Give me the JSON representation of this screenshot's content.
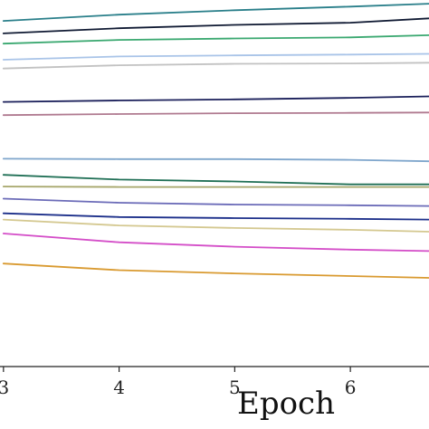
{
  "chart_data": {
    "type": "line",
    "xlabel": "Epoch",
    "ylabel": "",
    "title": "",
    "xlim": [
      2.97,
      6.68
    ],
    "ylim": [
      0,
      1
    ],
    "x_ticks": [
      3,
      4,
      5,
      6
    ],
    "x_tick_labels": [
      "3",
      "4",
      "5",
      "6"
    ],
    "x": [
      3,
      4,
      5,
      6,
      6.68
    ],
    "grid": false,
    "series": [
      {
        "color": "#2a7f8a",
        "values": [
          0.943,
          0.96,
          0.972,
          0.982,
          0.99
        ]
      },
      {
        "color": "#101a33",
        "values": [
          0.909,
          0.923,
          0.932,
          0.938,
          0.95
        ]
      },
      {
        "color": "#3aa870",
        "values": [
          0.881,
          0.891,
          0.895,
          0.898,
          0.904
        ]
      },
      {
        "color": "#a9c4e8",
        "values": [
          0.837,
          0.846,
          0.849,
          0.851,
          0.853
        ]
      },
      {
        "color": "#c2c2c2",
        "values": [
          0.813,
          0.822,
          0.826,
          0.827,
          0.829
        ]
      },
      {
        "color": "#1a1f5a",
        "values": [
          0.722,
          0.726,
          0.729,
          0.733,
          0.737
        ]
      },
      {
        "color": "#b07a90",
        "values": [
          0.686,
          0.689,
          0.691,
          0.692,
          0.693
        ]
      },
      {
        "color": "#7fa6cc",
        "values": [
          0.567,
          0.566,
          0.566,
          0.564,
          0.56
        ]
      },
      {
        "color": "#1f6f55",
        "values": [
          0.523,
          0.51,
          0.505,
          0.497,
          0.497
        ]
      },
      {
        "color": "#a6a66a",
        "values": [
          0.491,
          0.49,
          0.49,
          0.49,
          0.49
        ]
      },
      {
        "color": "#6b6bb8",
        "values": [
          0.458,
          0.447,
          0.442,
          0.44,
          0.438
        ]
      },
      {
        "color": "#1c2f8a",
        "values": [
          0.418,
          0.408,
          0.405,
          0.403,
          0.401
        ]
      },
      {
        "color": "#d4c890",
        "values": [
          0.401,
          0.385,
          0.378,
          0.373,
          0.368
        ]
      },
      {
        "color": "#d44ec8",
        "values": [
          0.363,
          0.339,
          0.327,
          0.319,
          0.315
        ]
      },
      {
        "color": "#d99a30",
        "values": [
          0.281,
          0.263,
          0.254,
          0.247,
          0.242
        ]
      }
    ]
  }
}
